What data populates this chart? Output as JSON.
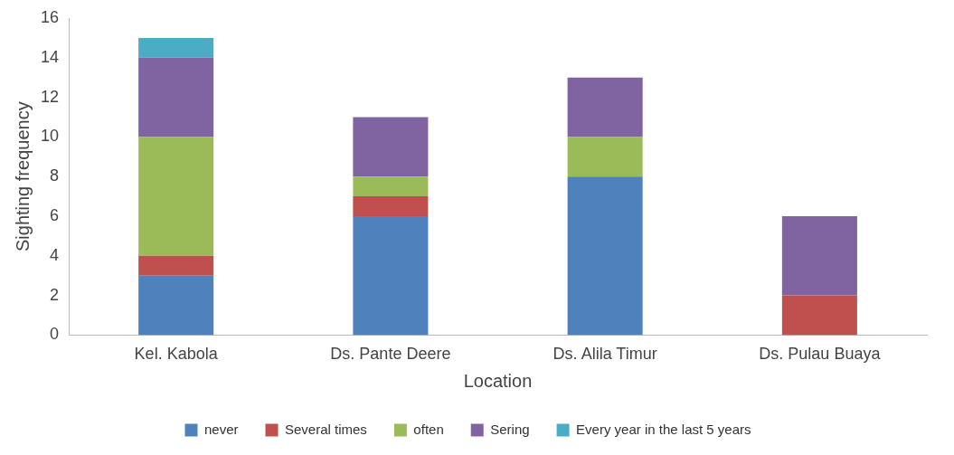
{
  "chart_data": {
    "type": "bar",
    "stacked": true,
    "xlabel": "Location",
    "ylabel": "Sighting frequency",
    "categories": [
      "Kel. Kabola",
      "Ds. Pante Deere",
      "Ds. Alila Timur",
      "Ds. Pulau Buaya"
    ],
    "series": [
      {
        "name": "never",
        "color": "#4f81bd",
        "values": [
          3,
          6,
          8,
          0
        ]
      },
      {
        "name": "Several times",
        "color": "#c0504d",
        "values": [
          1,
          1,
          0,
          2
        ]
      },
      {
        "name": "often",
        "color": "#9bbb59",
        "values": [
          6,
          1,
          2,
          0
        ]
      },
      {
        "name": "Sering",
        "color": "#8064a2",
        "values": [
          4,
          3,
          3,
          4
        ]
      },
      {
        "name": "Every year in the last 5 years",
        "color": "#4bacc6",
        "values": [
          1,
          0,
          0,
          0
        ]
      }
    ],
    "ylim": [
      0,
      16
    ],
    "yticks": [
      0,
      2,
      4,
      6,
      8,
      10,
      12,
      14,
      16
    ],
    "grid": false,
    "legend": "bottom"
  }
}
